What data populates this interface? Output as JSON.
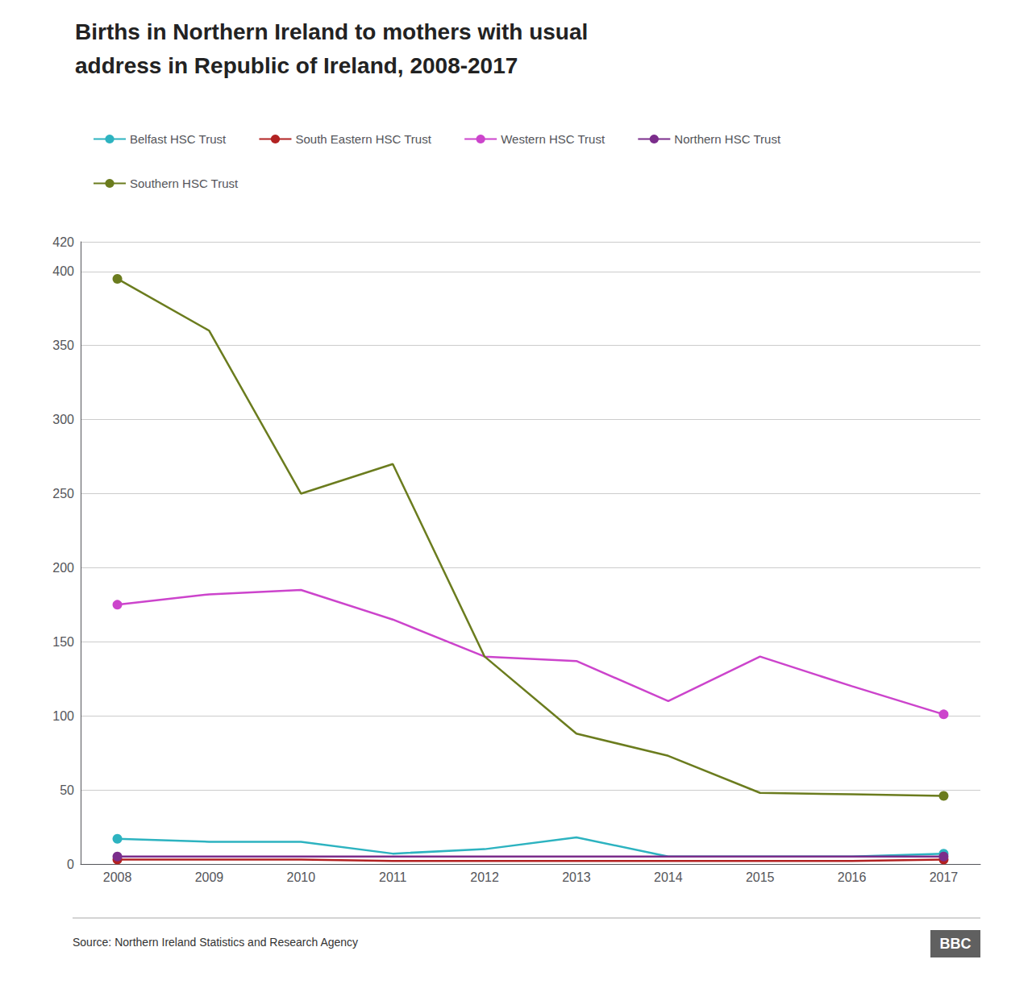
{
  "chart_data": {
    "type": "line",
    "title": "Births in Northern Ireland to mothers with usual",
    "subtitle": "address in Republic of Ireland, 2008-2017",
    "x": [
      2008,
      2009,
      2010,
      2011,
      2012,
      2013,
      2014,
      2015,
      2016,
      2017
    ],
    "xlim": [
      2007.6,
      2017.4
    ],
    "xticks": [
      2008,
      2009,
      2010,
      2011,
      2012,
      2013,
      2014,
      2015,
      2016,
      2017
    ],
    "series": [
      {
        "name": "Belfast HSC Trust",
        "color": "#2db3c0",
        "values": [
          17,
          15,
          15,
          7,
          10,
          18,
          5,
          5,
          5,
          7
        ]
      },
      {
        "name": "South Eastern HSC Trust",
        "color": "#b22222",
        "values": [
          3,
          3,
          3,
          2,
          2,
          2,
          2,
          2,
          2,
          3
        ]
      },
      {
        "name": "Western HSC Trust",
        "color": "#cc44cc",
        "values": [
          175,
          182,
          185,
          165,
          140,
          137,
          110,
          140,
          120,
          101
        ]
      },
      {
        "name": "Northern HSC Trust",
        "color": "#7B2D8B",
        "values": [
          5,
          5,
          5,
          5,
          5,
          5,
          5,
          5,
          5,
          5
        ]
      },
      {
        "name": "Southern HSC Trust",
        "color": "#6b7c1e",
        "values": [
          395,
          360,
          250,
          270,
          140,
          88,
          73,
          48,
          47,
          46
        ]
      }
    ],
    "ylim": [
      0,
      420
    ],
    "yticks": [
      0,
      50,
      100,
      150,
      200,
      250,
      300,
      350,
      400
    ],
    "grid": true,
    "legend": "top",
    "marker": "endpoints",
    "annotations": [
      "Source: Northern Ireland Statistics and Research Agency",
      "BBC"
    ]
  }
}
